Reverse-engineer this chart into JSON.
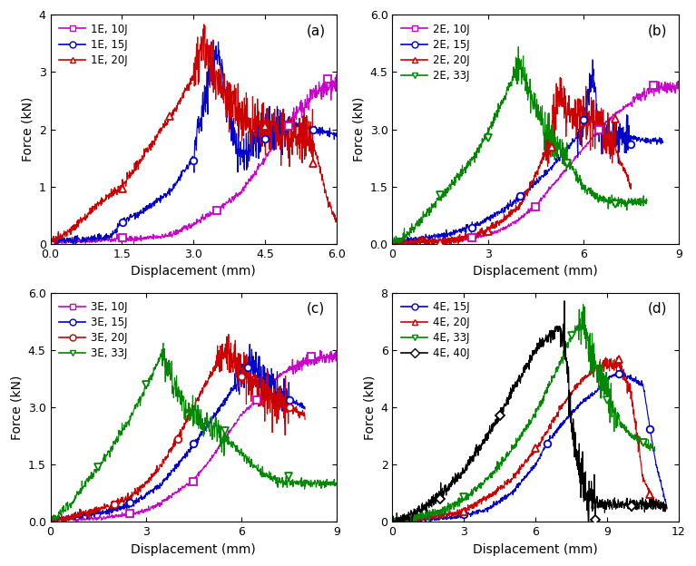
{
  "panels": [
    {
      "label": "(a)",
      "xlim": [
        0,
        6.0
      ],
      "ylim": [
        0,
        4.0
      ],
      "xticks": [
        0.0,
        1.5,
        3.0,
        4.5,
        6.0
      ],
      "yticks": [
        0,
        1,
        2,
        3,
        4
      ],
      "xlabel": "Displacement (mm)",
      "ylabel": "Force (kN)",
      "series": [
        {
          "name": "1E, 10J",
          "color": "#cc00cc",
          "marker": "s"
        },
        {
          "name": "1E, 15J",
          "color": "#0000cc",
          "marker": "o"
        },
        {
          "name": "1E, 20J",
          "color": "#cc0000",
          "marker": "^"
        }
      ]
    },
    {
      "label": "(b)",
      "xlim": [
        0,
        9.0
      ],
      "ylim": [
        0,
        6.0
      ],
      "xticks": [
        0,
        3,
        6,
        9
      ],
      "yticks": [
        0,
        1.5,
        3.0,
        4.5,
        6.0
      ],
      "xlabel": "Displacement (mm)",
      "ylabel": "Force (kN)",
      "series": [
        {
          "name": "2E, 10J",
          "color": "#cc00cc",
          "marker": "s"
        },
        {
          "name": "2E, 15J",
          "color": "#0000cc",
          "marker": "o"
        },
        {
          "name": "2E, 20J",
          "color": "#cc0000",
          "marker": "^"
        },
        {
          "name": "2E, 33J",
          "color": "#008800",
          "marker": "v"
        }
      ]
    },
    {
      "label": "(c)",
      "xlim": [
        0,
        9.0
      ],
      "ylim": [
        0,
        6.0
      ],
      "xticks": [
        0,
        3,
        6,
        9
      ],
      "yticks": [
        0,
        1.5,
        3.0,
        4.5,
        6.0
      ],
      "xlabel": "Displacement (mm)",
      "ylabel": "Force (kN)",
      "series": [
        {
          "name": "3E, 10J",
          "color": "#cc00cc",
          "marker": "s"
        },
        {
          "name": "3E, 15J",
          "color": "#0000cc",
          "marker": "o"
        },
        {
          "name": "3E, 20J",
          "color": "#cc0000",
          "marker": "o"
        },
        {
          "name": "3E, 33J",
          "color": "#008800",
          "marker": "v"
        }
      ]
    },
    {
      "label": "(d)",
      "xlim": [
        0,
        12.0
      ],
      "ylim": [
        0,
        8.0
      ],
      "xticks": [
        0,
        3,
        6,
        9,
        12
      ],
      "yticks": [
        0,
        2,
        4,
        6,
        8
      ],
      "xlabel": "Displacement (mm)",
      "ylabel": "Force (kN)",
      "series": [
        {
          "name": "4E, 15J",
          "color": "#0000cc",
          "marker": "o"
        },
        {
          "name": "4E, 20J",
          "color": "#cc0000",
          "marker": "^"
        },
        {
          "name": "4E, 33J",
          "color": "#008800",
          "marker": "v"
        },
        {
          "name": "4E, 40J",
          "color": "#000000",
          "marker": "D"
        }
      ]
    }
  ]
}
